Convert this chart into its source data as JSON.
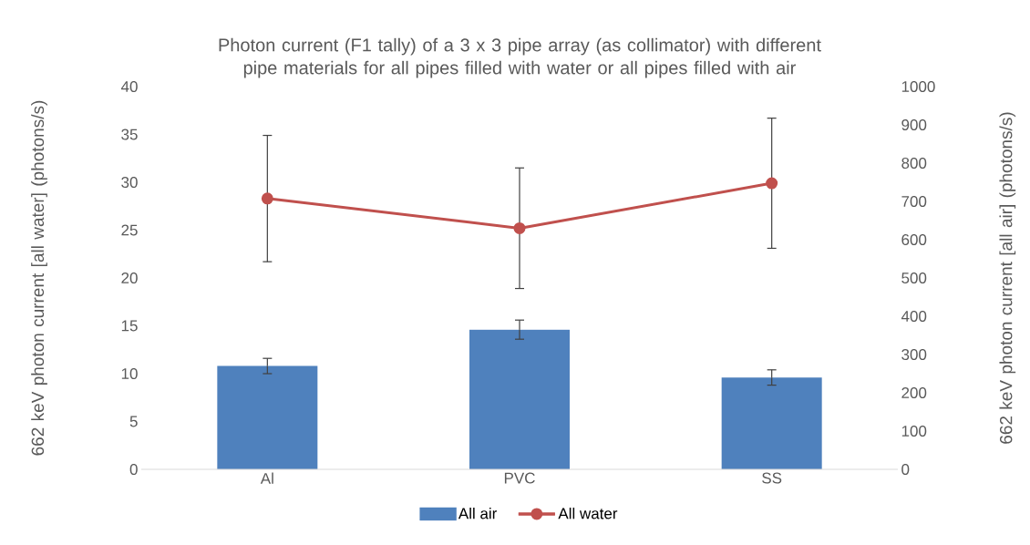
{
  "chart_data": {
    "type": "bar",
    "title": "Photon current (F1 tally) of a 3 x 3 pipe array (as collimator) with different pipe materials for all pipes filled with water or all pipes filled with air",
    "ylabel": "662 keV photon current [all water] (photons/s)",
    "y2label": "662 keV photon current [all air] (photons/s)",
    "categories": [
      "Al",
      "PVC",
      "SS"
    ],
    "series": [
      {
        "name": "All air",
        "axis": "y2",
        "color": "#4f81bd",
        "values": [
          270,
          365,
          240
        ],
        "errors": [
          20,
          25,
          20
        ]
      },
      {
        "name": "All water",
        "type": "line",
        "axis": "y",
        "color": "#c0504d",
        "values": [
          28.3,
          25.2,
          29.9
        ],
        "errors": [
          6.6,
          6.3,
          6.8
        ]
      }
    ],
    "marker": "circle",
    "legend": "bottom",
    "ylim": [
      0,
      40
    ],
    "yticks": [
      0,
      5,
      10,
      15,
      20,
      25,
      30,
      35,
      40
    ],
    "y2lim": [
      0,
      1000
    ],
    "y2ticks": [
      0,
      100,
      200,
      300,
      400,
      500,
      600,
      700,
      800,
      900,
      1000
    ]
  }
}
